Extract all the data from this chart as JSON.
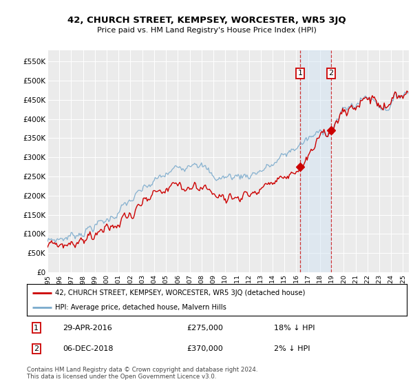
{
  "title": "42, CHURCH STREET, KEMPSEY, WORCESTER, WR5 3JQ",
  "subtitle": "Price paid vs. HM Land Registry's House Price Index (HPI)",
  "legend_line1": "42, CHURCH STREET, KEMPSEY, WORCESTER, WR5 3JQ (detached house)",
  "legend_line2": "HPI: Average price, detached house, Malvern Hills",
  "annotation1_date": "29-APR-2016",
  "annotation1_price": "£275,000",
  "annotation1_hpi": "18% ↓ HPI",
  "annotation1_year": 2016.32,
  "annotation1_value": 275000,
  "annotation2_date": "06-DEC-2018",
  "annotation2_price": "£370,000",
  "annotation2_hpi": "2% ↓ HPI",
  "annotation2_year": 2018.92,
  "annotation2_value": 370000,
  "ylabel_ticks": [
    "£0",
    "£50K",
    "£100K",
    "£150K",
    "£200K",
    "£250K",
    "£300K",
    "£350K",
    "£400K",
    "£450K",
    "£500K",
    "£550K"
  ],
  "ytick_values": [
    0,
    50000,
    100000,
    150000,
    200000,
    250000,
    300000,
    350000,
    400000,
    450000,
    500000,
    550000
  ],
  "ylim": [
    0,
    580000
  ],
  "xlim_start": 1995.0,
  "xlim_end": 2025.5,
  "background_color": "#ffffff",
  "plot_bg_color": "#ebebeb",
  "grid_color": "#ffffff",
  "red_color": "#cc0000",
  "blue_color": "#7aaacc",
  "vline_color": "#cc3333",
  "shade_color": "#d0e4f5",
  "footnote": "Contains HM Land Registry data © Crown copyright and database right 2024.\nThis data is licensed under the Open Government Licence v3.0."
}
